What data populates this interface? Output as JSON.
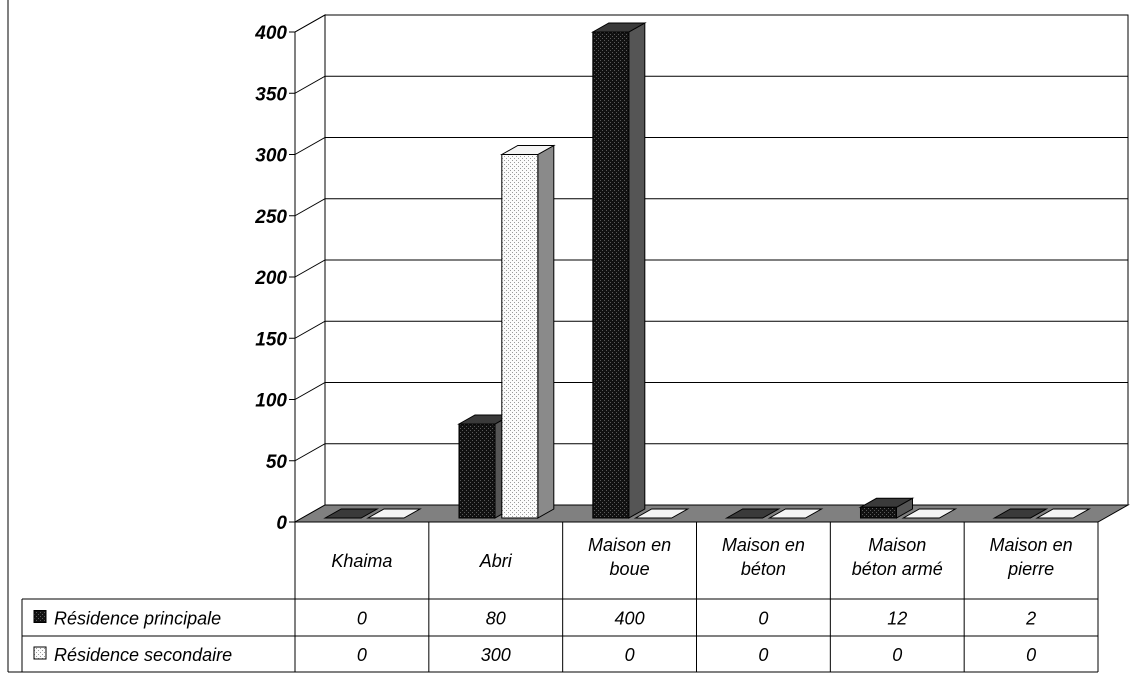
{
  "chart_data": {
    "type": "bar",
    "categories": [
      [
        "Khaima"
      ],
      [
        "Abri"
      ],
      [
        "Maison en",
        "boue"
      ],
      [
        "Maison en",
        "béton"
      ],
      [
        "Maison",
        "béton armé"
      ],
      [
        "Maison en",
        "pierre"
      ]
    ],
    "series": [
      {
        "name": "Résidence principale",
        "values": [
          0,
          80,
          400,
          0,
          12,
          2
        ],
        "value_labels": [
          "0",
          "80",
          "400",
          "0",
          "12",
          "2"
        ],
        "color": "#1a1a1a"
      },
      {
        "name": "Résidence secondaire",
        "values": [
          0,
          300,
          0,
          0,
          0,
          0
        ],
        "value_labels": [
          "0",
          "300",
          "0",
          "0",
          "0",
          "0"
        ],
        "color": "#f2f2f2"
      }
    ],
    "y_ticks": [
      "0",
      "50",
      "100",
      "150",
      "200",
      "250",
      "300",
      "350",
      "400"
    ],
    "ylim": [
      0,
      400
    ],
    "grid": true,
    "legend": "data-table",
    "colors": {
      "floor": "#808080",
      "wall": "#ffffff",
      "grid": "#000000",
      "side_dark": "#555555",
      "side_light": "#8a8a8a"
    }
  }
}
